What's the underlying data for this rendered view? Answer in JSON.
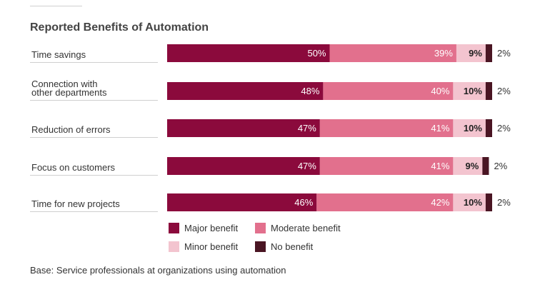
{
  "title": "Reported Benefits of Automation",
  "footnote": "Base: Service professionals at organizations using automation",
  "chart_data": {
    "type": "bar",
    "orientation": "horizontal",
    "stacked": true,
    "title": "Reported Benefits of Automation",
    "categories": [
      [
        "Time savings"
      ],
      [
        "Connection with",
        "other departments"
      ],
      [
        "Reduction of errors"
      ],
      [
        "Focus on customers"
      ],
      [
        "Time for new projects"
      ]
    ],
    "series": [
      {
        "name": "Major benefit",
        "color": "#8b0a3c",
        "label_color": "#ffffff",
        "values": [
          50,
          48,
          47,
          47,
          46
        ]
      },
      {
        "name": "Moderate benefit",
        "color": "#e2708d",
        "label_color": "#ffffff",
        "values": [
          39,
          40,
          41,
          41,
          42
        ]
      },
      {
        "name": "Minor benefit",
        "color": "#f3c4cf",
        "label_color": "#222222",
        "values": [
          9,
          10,
          10,
          9,
          10
        ]
      },
      {
        "name": "No benefit",
        "color": "#4a1523",
        "label_color": "#333333",
        "values": [
          2,
          2,
          2,
          2,
          2
        ]
      }
    ],
    "value_suffix": "%",
    "legend_position": "bottom",
    "grid": false
  }
}
